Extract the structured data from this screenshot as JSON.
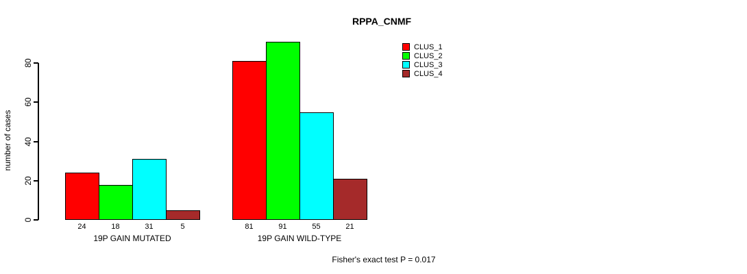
{
  "chart_data": {
    "type": "bar",
    "title": "RPPA_CNMF",
    "ylabel": "number of cases",
    "xlabel": "",
    "yticks": [
      0,
      20,
      40,
      60,
      80
    ],
    "ylim": [
      0,
      91
    ],
    "grid": false,
    "legend_position": "top-right",
    "series": [
      {
        "name": "CLUS_1",
        "color": "#FF0000"
      },
      {
        "name": "CLUS_2",
        "color": "#00FF00"
      },
      {
        "name": "CLUS_3",
        "color": "#00FFFF"
      },
      {
        "name": "CLUS_4",
        "color": "#A52A2A"
      }
    ],
    "groups": [
      {
        "label": "19P GAIN MUTATED",
        "values": [
          24,
          18,
          31,
          5
        ]
      },
      {
        "label": "19P GAIN WILD-TYPE",
        "values": [
          81,
          91,
          55,
          21
        ]
      }
    ],
    "annotation": "Fisher's exact test P = 0.017"
  },
  "colors": {
    "background": "#FFFFFF",
    "axis": "#000000",
    "bar_border": "#000000",
    "text": "#000000"
  }
}
